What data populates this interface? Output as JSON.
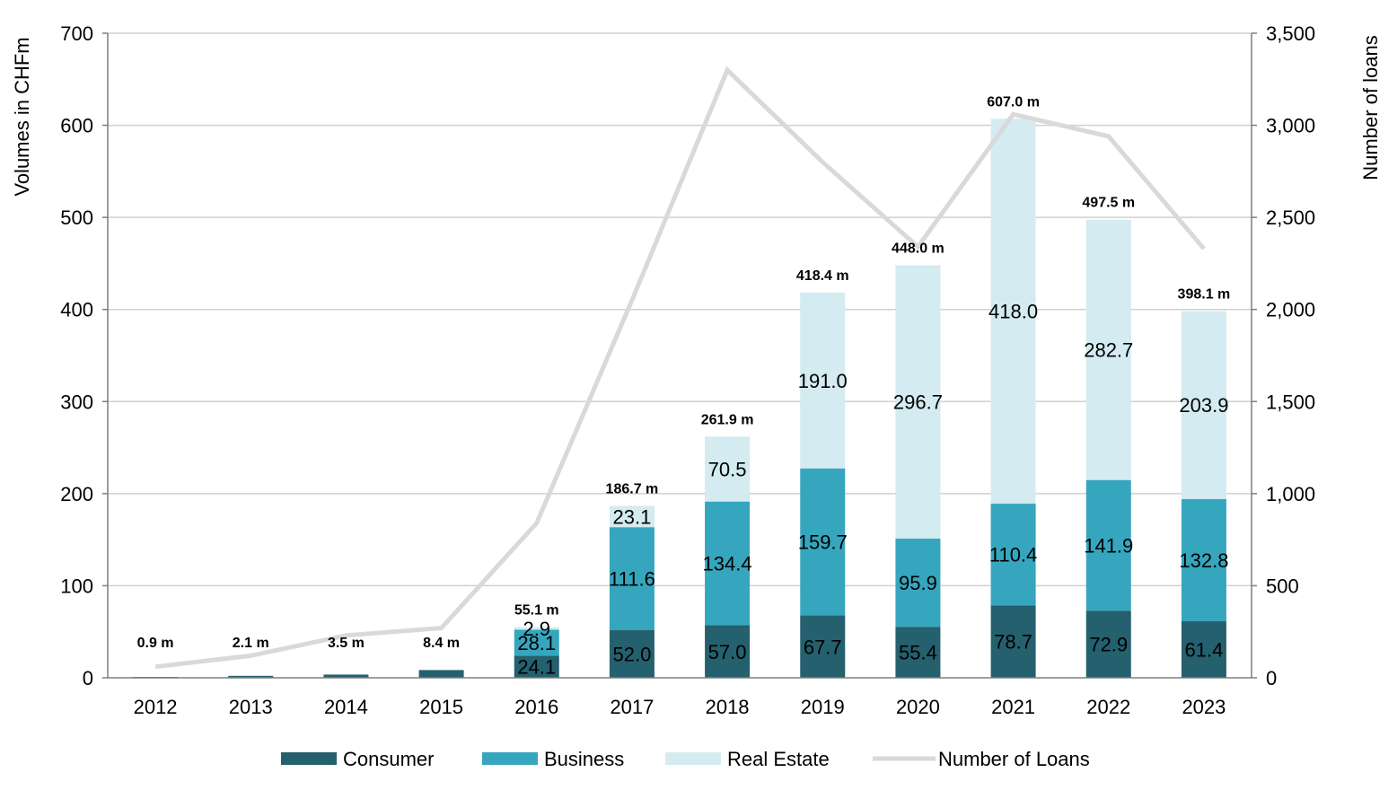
{
  "chart_data": {
    "type": "bar",
    "stacked": true,
    "categories": [
      "2012",
      "2013",
      "2014",
      "2015",
      "2016",
      "2017",
      "2018",
      "2019",
      "2020",
      "2021",
      "2022",
      "2023"
    ],
    "series": [
      {
        "name": "Consumer",
        "color": "#24606e",
        "values": [
          0.9,
          2.1,
          3.5,
          8.4,
          24.1,
          52.0,
          57.0,
          67.7,
          55.4,
          78.7,
          72.9,
          61.4
        ],
        "labels": [
          "",
          "",
          "",
          "",
          "24.1",
          "52.0",
          "57.0",
          "67.7",
          "55.4",
          "78.7",
          "72.9",
          "61.4"
        ]
      },
      {
        "name": "Business",
        "color": "#36a6be",
        "values": [
          0,
          0,
          0,
          0,
          28.1,
          111.6,
          134.4,
          159.7,
          95.9,
          110.4,
          141.9,
          132.8
        ],
        "labels": [
          "",
          "",
          "",
          "",
          "28.1",
          "111.6",
          "134.4",
          "159.7",
          "95.9",
          "110.4",
          "141.9",
          "132.8"
        ]
      },
      {
        "name": "Real Estate",
        "color": "#d3ebf1",
        "values": [
          0,
          0,
          0,
          0,
          2.9,
          23.1,
          70.5,
          191.0,
          296.7,
          418.0,
          282.7,
          203.9
        ],
        "labels": [
          "",
          "",
          "",
          "",
          "2.9",
          "23.1",
          "70.5",
          "191.0",
          "296.7",
          "418.0",
          "282.7",
          "203.9"
        ]
      }
    ],
    "totals": [
      0.9,
      2.1,
      3.5,
      8.4,
      55.1,
      186.7,
      261.9,
      418.4,
      448.0,
      607.0,
      497.5,
      398.1
    ],
    "total_labels": [
      "0.9 m",
      "2.1 m",
      "3.5 m",
      "8.4 m",
      "55.1 m",
      "186.7 m",
      "261.9 m",
      "418.4 m",
      "448.0 m",
      "607.0 m",
      "497.5 m",
      "398.1 m"
    ],
    "line_series": {
      "name": "Number of Loans",
      "color": "#d9d9d9",
      "axis": "right",
      "values": [
        60,
        120,
        230,
        270,
        840,
        2050,
        3300,
        2800,
        2340,
        3060,
        2940,
        2330
      ]
    },
    "ylabel": "Volumes in CHFm",
    "ylabel_right": "Number of loans",
    "ylim": [
      0,
      700
    ],
    "ylim_right": [
      0,
      3500
    ],
    "yticks": [
      0,
      100,
      200,
      300,
      400,
      500,
      600,
      700
    ],
    "yticks_right": [
      0,
      500,
      1000,
      1500,
      2000,
      2500,
      3000,
      3500
    ],
    "ytick_labels": [
      "0",
      "100",
      "200",
      "300",
      "400",
      "500",
      "600",
      "700"
    ],
    "ytick_labels_right": [
      "0",
      "500",
      "1,000",
      "1,500",
      "2,000",
      "2,500",
      "3,000",
      "3,500"
    ],
    "grid": true,
    "legend": "bottom"
  }
}
